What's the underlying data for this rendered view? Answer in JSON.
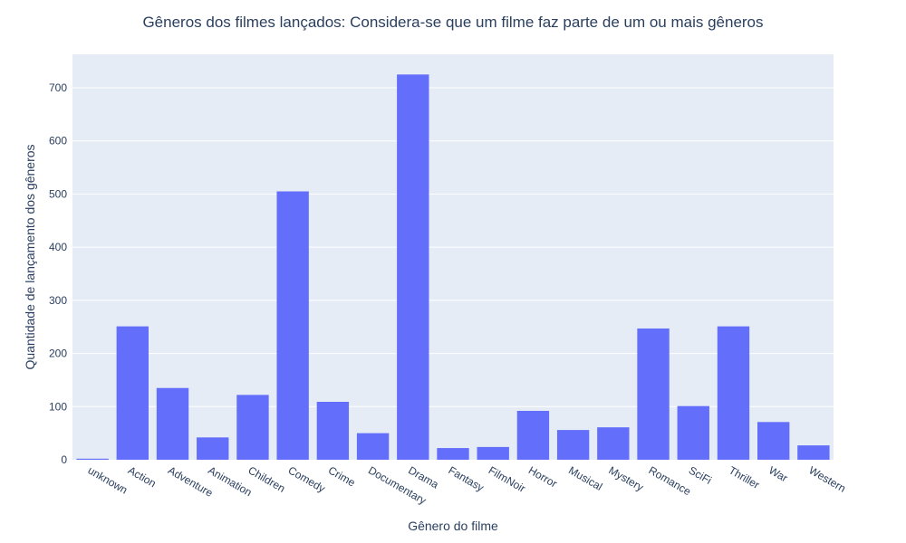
{
  "chart_data": {
    "type": "bar",
    "title": "Gêneros dos filmes lançados: Considera-se que um filme faz parte de um ou mais gêneros",
    "xlabel": "Gênero do filme",
    "ylabel": "Quantidade de lançamento dos gêneros",
    "categories": [
      "unknown",
      "Action",
      "Adventure",
      "Animation",
      "Children",
      "Comedy",
      "Crime",
      "Documentary",
      "Drama",
      "Fantasy",
      "FilmNoir",
      "Horror",
      "Musical",
      "Mystery",
      "Romance",
      "SciFi",
      "Thriller",
      "War",
      "Western"
    ],
    "values": [
      2,
      251,
      135,
      42,
      122,
      505,
      109,
      50,
      725,
      22,
      24,
      92,
      56,
      61,
      247,
      101,
      251,
      71,
      27
    ],
    "ylim": [
      0,
      763
    ],
    "yticks": [
      0,
      100,
      200,
      300,
      400,
      500,
      600,
      700
    ],
    "grid": true,
    "colors": {
      "bar": "#636efa",
      "plot_bg": "#e5ecf6",
      "text": "#2a3f5f"
    }
  }
}
